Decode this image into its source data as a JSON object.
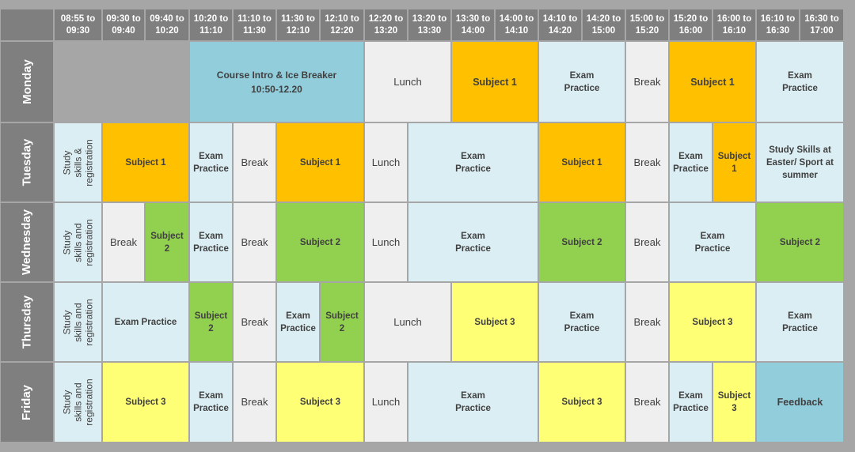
{
  "colors": {
    "header_bg": "#7f7f7f",
    "grid_bg": "#a6a6a6",
    "exam_practice": "#dbeef4",
    "break_lunch": "#efefef",
    "subject_1": "#ffc000",
    "subject_2": "#92d050",
    "subject_3": "#ffff75",
    "intro_feedback": "#92cddc",
    "blank": "#a6a6a6"
  },
  "time_slots": [
    "08:55 to\n09:30",
    "09:30 to\n09:40",
    "09:40 to\n10:20",
    "10:20 to\n11:10",
    "11:10 to\n11:30",
    "11:30 to\n12:10",
    "12:10 to\n12:20",
    "12:20 to\n13:20",
    "13:20 to\n13:30",
    "13:30 to\n14:00",
    "14:00 to\n14:10",
    "14:10 to\n14:20",
    "14:20 to\n15:00",
    "15:00 to\n15:20",
    "15:20 to\n16:00",
    "16:00 to\n16:10",
    "16:10 to\n16:30",
    "16:30 to\n17:00"
  ],
  "days": [
    {
      "name": "Monday",
      "side": "",
      "events": [
        {
          "label": "",
          "kind": "blank",
          "span": [
            1,
            3
          ]
        },
        {
          "label": "Course Intro & Ice Breaker\n10:50-12.20",
          "kind": "intro_feedback",
          "span": [
            4,
            7
          ],
          "style": "large"
        },
        {
          "label": "Lunch",
          "kind": "break_lunch",
          "span": [
            8,
            9
          ],
          "style": "plain"
        },
        {
          "label": "Subject 1",
          "kind": "subject_1",
          "span": [
            10,
            11
          ],
          "style": "big"
        },
        {
          "label": "Exam\nPractice",
          "kind": "exam_practice",
          "span": [
            12,
            13
          ]
        },
        {
          "label": "Break",
          "kind": "break_lunch",
          "span": [
            14,
            14
          ],
          "style": "plain"
        },
        {
          "label": "Subject 1",
          "kind": "subject_1",
          "span": [
            15,
            16
          ],
          "style": "big"
        },
        {
          "label": "Exam\nPractice",
          "kind": "exam_practice",
          "span": [
            17,
            18
          ]
        }
      ]
    },
    {
      "name": "Tuesday",
      "side": "Study skills &\nregistration",
      "events": [
        {
          "label": "Subject 1",
          "kind": "subject_1",
          "span": [
            2,
            3
          ]
        },
        {
          "label": "Exam\nPractice",
          "kind": "exam_practice",
          "span": [
            4,
            4
          ]
        },
        {
          "label": "Break",
          "kind": "break_lunch",
          "span": [
            5,
            5
          ],
          "style": "plain"
        },
        {
          "label": "Subject 1",
          "kind": "subject_1",
          "span": [
            6,
            7
          ]
        },
        {
          "label": "Lunch",
          "kind": "break_lunch",
          "span": [
            8,
            8
          ],
          "style": "plain"
        },
        {
          "label": "Exam\nPractice",
          "kind": "exam_practice",
          "span": [
            9,
            11
          ]
        },
        {
          "label": "Subject 1",
          "kind": "subject_1",
          "span": [
            12,
            13
          ]
        },
        {
          "label": "Break",
          "kind": "break_lunch",
          "span": [
            14,
            14
          ],
          "style": "plain"
        },
        {
          "label": "Exam\nPractice",
          "kind": "exam_practice",
          "span": [
            15,
            15
          ]
        },
        {
          "label": "Subject\n1",
          "kind": "subject_1",
          "span": [
            16,
            16
          ]
        },
        {
          "label": "Study Skills at\nEaster/ Sport at\nsummer",
          "kind": "exam_practice",
          "span": [
            17,
            18
          ]
        }
      ]
    },
    {
      "name": "Wednesday",
      "side": "Study skills and\nregistration",
      "events": [
        {
          "label": "Break",
          "kind": "break_lunch",
          "span": [
            2,
            2
          ],
          "style": "plain"
        },
        {
          "label": "Subject\n2",
          "kind": "subject_2",
          "span": [
            3,
            3
          ]
        },
        {
          "label": "Exam\nPractice",
          "kind": "exam_practice",
          "span": [
            4,
            4
          ]
        },
        {
          "label": "Break",
          "kind": "break_lunch",
          "span": [
            5,
            5
          ],
          "style": "plain"
        },
        {
          "label": "Subject 2",
          "kind": "subject_2",
          "span": [
            6,
            7
          ]
        },
        {
          "label": "Lunch",
          "kind": "break_lunch",
          "span": [
            8,
            8
          ],
          "style": "plain"
        },
        {
          "label": "Exam\nPractice",
          "kind": "exam_practice",
          "span": [
            9,
            11
          ]
        },
        {
          "label": "Subject 2",
          "kind": "subject_2",
          "span": [
            12,
            13
          ]
        },
        {
          "label": "Break",
          "kind": "break_lunch",
          "span": [
            14,
            14
          ],
          "style": "plain"
        },
        {
          "label": "Exam\nPractice",
          "kind": "exam_practice",
          "span": [
            15,
            16
          ]
        },
        {
          "label": "Subject 2",
          "kind": "subject_2",
          "span": [
            17,
            18
          ]
        }
      ]
    },
    {
      "name": "Thursday",
      "side": "Study skills and\nregistration",
      "events": [
        {
          "label": "Exam Practice",
          "kind": "exam_practice",
          "span": [
            2,
            3
          ]
        },
        {
          "label": "Subject\n2",
          "kind": "subject_2",
          "span": [
            4,
            4
          ]
        },
        {
          "label": "Break",
          "kind": "break_lunch",
          "span": [
            5,
            5
          ],
          "style": "plain"
        },
        {
          "label": "Exam\nPractice",
          "kind": "exam_practice",
          "span": [
            6,
            6
          ]
        },
        {
          "label": "Subject\n2",
          "kind": "subject_2",
          "span": [
            7,
            7
          ]
        },
        {
          "label": "Lunch",
          "kind": "break_lunch",
          "span": [
            8,
            9
          ],
          "style": "plain"
        },
        {
          "label": "Subject 3",
          "kind": "subject_3",
          "span": [
            10,
            11
          ]
        },
        {
          "label": "Exam\nPractice",
          "kind": "exam_practice",
          "span": [
            12,
            13
          ]
        },
        {
          "label": "Break",
          "kind": "break_lunch",
          "span": [
            14,
            14
          ],
          "style": "plain"
        },
        {
          "label": "Subject 3",
          "kind": "subject_3",
          "span": [
            15,
            16
          ]
        },
        {
          "label": "Exam\nPractice",
          "kind": "exam_practice",
          "span": [
            17,
            18
          ]
        }
      ]
    },
    {
      "name": "Friday",
      "side": "Study skills and\nregistration",
      "events": [
        {
          "label": "Subject 3",
          "kind": "subject_3",
          "span": [
            2,
            3
          ]
        },
        {
          "label": "Exam\nPractice",
          "kind": "exam_practice",
          "span": [
            4,
            4
          ]
        },
        {
          "label": "Break",
          "kind": "break_lunch",
          "span": [
            5,
            5
          ],
          "style": "plain"
        },
        {
          "label": "Subject 3",
          "kind": "subject_3",
          "span": [
            6,
            7
          ]
        },
        {
          "label": "Lunch",
          "kind": "break_lunch",
          "span": [
            8,
            8
          ],
          "style": "plain"
        },
        {
          "label": "Exam\nPractice",
          "kind": "exam_practice",
          "span": [
            9,
            11
          ]
        },
        {
          "label": "Subject 3",
          "kind": "subject_3",
          "span": [
            12,
            13
          ]
        },
        {
          "label": "Break",
          "kind": "break_lunch",
          "span": [
            14,
            14
          ],
          "style": "plain"
        },
        {
          "label": "Exam\nPractice",
          "kind": "exam_practice",
          "span": [
            15,
            15
          ]
        },
        {
          "label": "Subject\n3",
          "kind": "subject_3",
          "span": [
            16,
            16
          ]
        },
        {
          "label": "Feedback",
          "kind": "intro_feedback",
          "span": [
            17,
            18
          ],
          "style": "big"
        }
      ]
    }
  ]
}
